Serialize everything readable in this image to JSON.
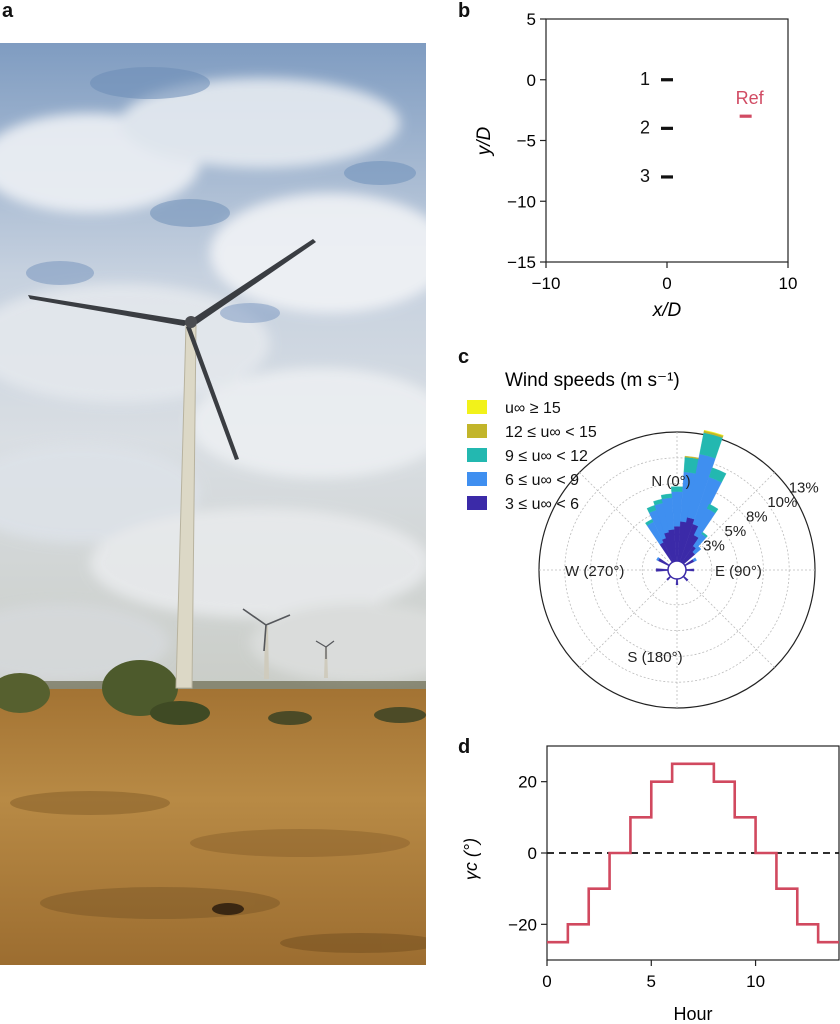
{
  "panels": {
    "a": "a",
    "b": "b",
    "c": "c",
    "d": "d"
  },
  "colors": {
    "sky_top": "#8ea6c4",
    "cloud": "#e9edf2",
    "ground": "#b7823a",
    "ground_dark": "#7a5524",
    "tower": "#d8d4c2",
    "ref_red": "#d14b63",
    "curve_red": "#d1495f"
  },
  "chart_data": [
    {
      "panel": "b",
      "type": "scatter",
      "xlabel": "x/D",
      "ylabel": "y/D",
      "xlim": [
        -10,
        10
      ],
      "ylim": [
        -15,
        5
      ],
      "xticks": [
        "−10",
        "0",
        "10"
      ],
      "yticks": [
        "5",
        "0",
        "−5",
        "−10",
        "−15"
      ],
      "xtick_values": [
        -10,
        0,
        10
      ],
      "ytick_values": [
        5,
        0,
        -5,
        -10,
        -15
      ],
      "points": [
        {
          "label": "1",
          "x": 0,
          "y": 0,
          "color": "#111111"
        },
        {
          "label": "2",
          "x": 0,
          "y": -4,
          "color": "#111111"
        },
        {
          "label": "3",
          "x": 0,
          "y": -8,
          "color": "#111111"
        },
        {
          "label": "Ref",
          "x": 6.5,
          "y": -3,
          "color": "#d14b63"
        }
      ]
    },
    {
      "panel": "c",
      "type": "wind-rose",
      "legend_title": "Wind speeds (m s⁻¹)",
      "legend": [
        {
          "label": "u∞ ≥ 15",
          "color": "#f2f21a"
        },
        {
          "label": "12 ≤ u∞ < 15",
          "color": "#c2b52a"
        },
        {
          "label": "9 ≤ u∞ < 12",
          "color": "#23b8b0"
        },
        {
          "label": "6 ≤ u∞ < 9",
          "color": "#3f8ff0"
        },
        {
          "label": "3 ≤ u∞ < 6",
          "color": "#3b2aa8"
        }
      ],
      "direction_labels": [
        {
          "text": "N (0°)",
          "angle": 0
        },
        {
          "text": "E (90°)",
          "angle": 90
        },
        {
          "text": "S (180°)",
          "angle": 180
        },
        {
          "text": "W (270°)",
          "angle": 270
        }
      ],
      "radial_labels": [
        "3%",
        "5%",
        "8%",
        "10%",
        "13%"
      ],
      "radial_values": [
        2.6,
        5.2,
        7.8,
        10.4,
        13
      ],
      "rmax": 13,
      "sectors": [
        {
          "dir": 0,
          "values": [
            3.5,
            3.5,
            0.5,
            0,
            0
          ]
        },
        {
          "dir": 8,
          "values": [
            4.0,
            5.0,
            1.5,
            0.1,
            0
          ]
        },
        {
          "dir": 15,
          "values": [
            4.5,
            6.5,
            2.2,
            0.2,
            0.05
          ]
        },
        {
          "dir": 23,
          "values": [
            4.0,
            5.0,
            1.0,
            0,
            0
          ]
        },
        {
          "dir": 30,
          "values": [
            3.0,
            3.0,
            0.5,
            0,
            0
          ]
        },
        {
          "dir": 38,
          "values": [
            2.0,
            1.5,
            0.2,
            0,
            0
          ]
        },
        {
          "dir": 45,
          "values": [
            1.5,
            0.8,
            0,
            0,
            0
          ]
        },
        {
          "dir": 60,
          "values": [
            1.0,
            0.3,
            0,
            0,
            0
          ]
        },
        {
          "dir": 90,
          "values": [
            0.8,
            0,
            0,
            0,
            0
          ]
        },
        {
          "dir": 135,
          "values": [
            0.6,
            0,
            0,
            0,
            0
          ]
        },
        {
          "dir": 180,
          "values": [
            0.6,
            0,
            0,
            0,
            0
          ]
        },
        {
          "dir": 225,
          "values": [
            0.5,
            0,
            0,
            0,
            0
          ]
        },
        {
          "dir": 270,
          "values": [
            1.2,
            0,
            0,
            0,
            0
          ]
        },
        {
          "dir": 300,
          "values": [
            1.2,
            0.2,
            0,
            0,
            0
          ]
        },
        {
          "dir": 330,
          "values": [
            2.2,
            2.3,
            0.3,
            0,
            0
          ]
        },
        {
          "dir": 338,
          "values": [
            2.5,
            3.0,
            0.5,
            0,
            0
          ]
        },
        {
          "dir": 345,
          "values": [
            3.0,
            3.0,
            0.4,
            0,
            0
          ]
        },
        {
          "dir": 352,
          "values": [
            3.2,
            3.2,
            0.4,
            0,
            0
          ]
        }
      ]
    },
    {
      "panel": "d",
      "type": "line",
      "step": true,
      "xlabel": "Hour",
      "ylabel": "γc (°)",
      "xlim": [
        0,
        14
      ],
      "ylim": [
        -30,
        30
      ],
      "xticks": [
        "0",
        "5",
        "10"
      ],
      "yticks": [
        "20",
        "0",
        "−20"
      ],
      "xtick_values": [
        0,
        5,
        10
      ],
      "ytick_values": [
        20,
        0,
        -20
      ],
      "hours": [
        0,
        1,
        2,
        3,
        4,
        5,
        6,
        7,
        8,
        9,
        10,
        11,
        12,
        13,
        14
      ],
      "values": [
        -25,
        -20,
        -10,
        0,
        10,
        20,
        25,
        25,
        20,
        10,
        0,
        -10,
        -20,
        -25,
        -25
      ],
      "reference_line": 0
    }
  ]
}
